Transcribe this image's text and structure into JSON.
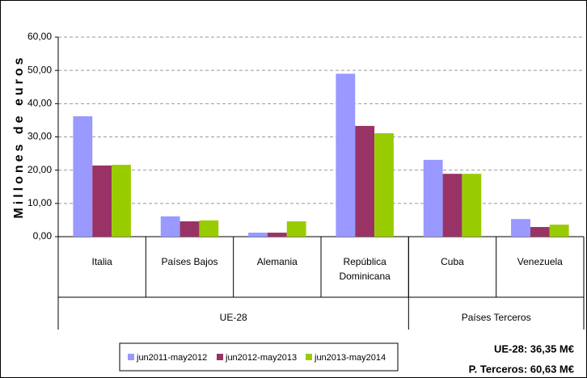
{
  "chart_data": {
    "type": "bar",
    "ylabel": "Millones de euros",
    "categories": [
      "Italia",
      "Países Bajos",
      "Alemania",
      "República Dominicana",
      "Cuba",
      "Venezuela"
    ],
    "groups": [
      {
        "name": "UE-28",
        "span": 4
      },
      {
        "name": "Países Terceros",
        "span": 2
      }
    ],
    "series": [
      {
        "name": "jun2011-may2012",
        "color": "#9999ff",
        "values": [
          36.2,
          6.1,
          1.2,
          49.0,
          23.1,
          5.3
        ]
      },
      {
        "name": "jun2012-may2013",
        "color": "#993366",
        "values": [
          21.4,
          4.6,
          1.2,
          33.3,
          18.9,
          2.9
        ]
      },
      {
        "name": "jun2013-may2014",
        "color": "#99cc00",
        "values": [
          21.6,
          4.9,
          4.6,
          31.1,
          18.9,
          3.6
        ]
      }
    ],
    "ylim": [
      0,
      60
    ],
    "yticks": [
      {
        "value": 0,
        "label": "0,00"
      },
      {
        "value": 10,
        "label": "10,00"
      },
      {
        "value": 20,
        "label": "20,00"
      },
      {
        "value": 30,
        "label": "30,00"
      },
      {
        "value": 40,
        "label": "40,00"
      },
      {
        "value": 50,
        "label": "50,00"
      },
      {
        "value": 60,
        "label": "60,00"
      }
    ],
    "grid": true,
    "annotations": [
      "UE-28: 36,35 M€",
      "P. Terceros: 60,63 M€"
    ]
  }
}
